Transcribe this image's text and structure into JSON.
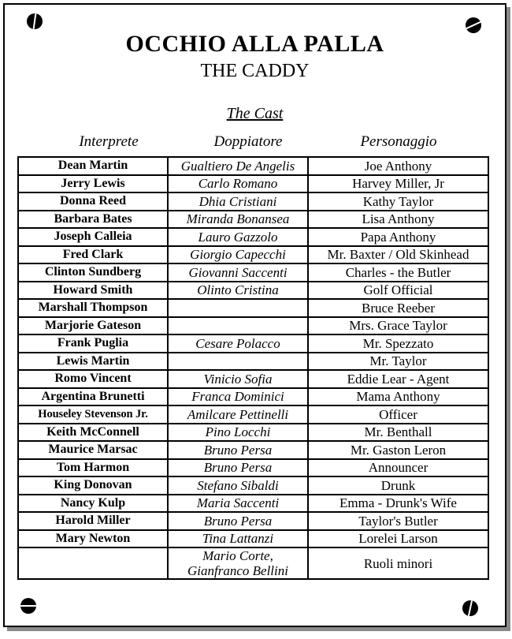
{
  "colors": {
    "ink": "#000000",
    "paper": "#ffffff",
    "shadow": "#8a8a8a"
  },
  "icons": {
    "corner_fastener": "screw-icon (black circle with slot)"
  },
  "header": {
    "title_italian": "OCCHIO ALLA PALLA",
    "title_english": "THE CADDY"
  },
  "cast": {
    "heading": "The Cast",
    "columns": [
      "Interprete",
      "Doppiatore",
      "Personaggio"
    ],
    "rows": [
      {
        "interprete": "Dean Martin",
        "doppiatore": "Gualtiero De Angelis",
        "personaggio": "Joe Anthony"
      },
      {
        "interprete": "Jerry Lewis",
        "doppiatore": "Carlo Romano",
        "personaggio": "Harvey Miller, Jr"
      },
      {
        "interprete": "Donna Reed",
        "doppiatore": "Dhia Cristiani",
        "personaggio": "Kathy Taylor"
      },
      {
        "interprete": "Barbara Bates",
        "doppiatore": "Miranda Bonansea",
        "personaggio": "Lisa Anthony"
      },
      {
        "interprete": "Joseph Calleia",
        "doppiatore": "Lauro Gazzolo",
        "personaggio": "Papa Anthony"
      },
      {
        "interprete": "Fred Clark",
        "doppiatore": "Giorgio Capecchi",
        "personaggio": "Mr. Baxter / Old Skinhead"
      },
      {
        "interprete": "Clinton Sundberg",
        "doppiatore": "Giovanni Saccenti",
        "personaggio": "Charles - the Butler"
      },
      {
        "interprete": "Howard Smith",
        "doppiatore": "Olinto Cristina",
        "personaggio": "Golf Official"
      },
      {
        "interprete": "Marshall Thompson",
        "doppiatore": "",
        "personaggio": "Bruce Reeber"
      },
      {
        "interprete": "Marjorie Gateson",
        "doppiatore": "",
        "personaggio": "Mrs. Grace Taylor"
      },
      {
        "interprete": "Frank Puglia",
        "doppiatore": "Cesare Polacco",
        "personaggio": "Mr. Spezzato"
      },
      {
        "interprete": "Lewis Martin",
        "doppiatore": "",
        "personaggio": "Mr. Taylor"
      },
      {
        "interprete": "Romo Vincent",
        "doppiatore": "Vinicio Sofia",
        "personaggio": "Eddie Lear - Agent"
      },
      {
        "interprete": "Argentina Brunetti",
        "doppiatore": "Franca Dominici",
        "personaggio": "Mama Anthony"
      },
      {
        "interprete": "Houseley Stevenson Jr.",
        "doppiatore": "Amilcare Pettinelli",
        "personaggio": "Officer"
      },
      {
        "interprete": "Keith McConnell",
        "doppiatore": "Pino Locchi",
        "personaggio": "Mr. Benthall"
      },
      {
        "interprete": "Maurice Marsac",
        "doppiatore": "Bruno Persa",
        "personaggio": "Mr. Gaston Leron"
      },
      {
        "interprete": "Tom Harmon",
        "doppiatore": "Bruno Persa",
        "personaggio": "Announcer"
      },
      {
        "interprete": "King Donovan",
        "doppiatore": "Stefano Sibaldi",
        "personaggio": "Drunk"
      },
      {
        "interprete": "Nancy Kulp",
        "doppiatore": "Maria Saccenti",
        "personaggio": "Emma - Drunk's Wife"
      },
      {
        "interprete": "Harold Miller",
        "doppiatore": "Bruno Persa",
        "personaggio": "Taylor's Butler"
      },
      {
        "interprete": "Mary Newton",
        "doppiatore": "Tina Lattanzi",
        "personaggio": "Lorelei Larson"
      },
      {
        "interprete": "",
        "doppiatore": "Mario Corte,\nGianfranco Bellini",
        "personaggio": "Ruoli minori"
      }
    ]
  }
}
